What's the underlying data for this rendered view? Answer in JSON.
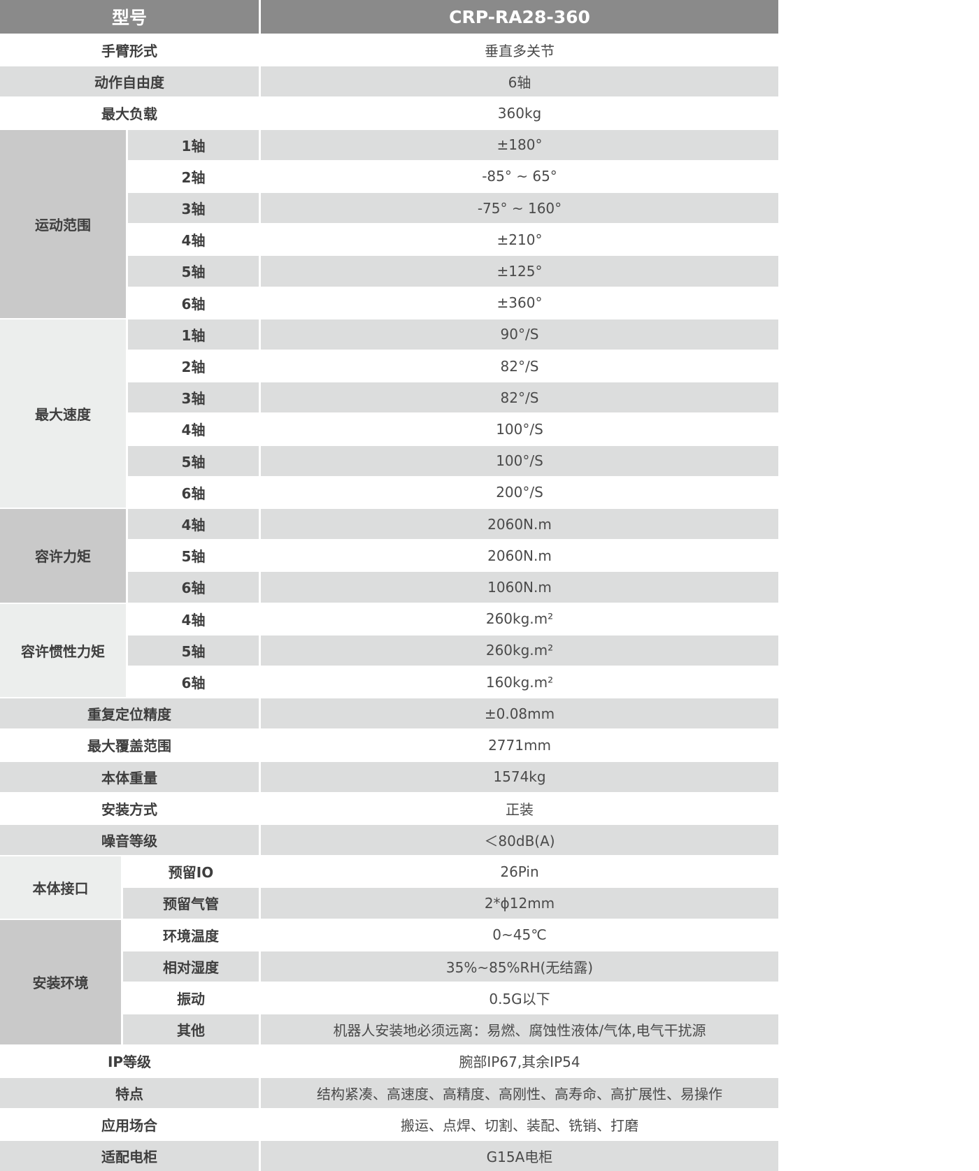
{
  "header": {
    "label": "型号",
    "value": "CRP-RA28-360"
  },
  "rows": [
    {
      "label": "手臂形式",
      "value": "垂直多关节"
    },
    {
      "label": "动作自由度",
      "value": "6轴"
    },
    {
      "label": "最大负载",
      "value": "360kg"
    },
    {
      "label": "运动范围",
      "tone": "dark",
      "sub": [
        {
          "label": "1轴",
          "value": "±180°"
        },
        {
          "label": "2轴",
          "value": "-85° ~ 65°"
        },
        {
          "label": "3轴",
          "value": "-75° ~ 160°"
        },
        {
          "label": "4轴",
          "value": "±210°"
        },
        {
          "label": "5轴",
          "value": "±125°"
        },
        {
          "label": "6轴",
          "value": "±360°"
        }
      ]
    },
    {
      "label": "最大速度",
      "tone": "light",
      "sub": [
        {
          "label": "1轴",
          "value": "90°/S"
        },
        {
          "label": "2轴",
          "value": "82°/S"
        },
        {
          "label": "3轴",
          "value": "82°/S"
        },
        {
          "label": "4轴",
          "value": "100°/S"
        },
        {
          "label": "5轴",
          "value": "100°/S"
        },
        {
          "label": "6轴",
          "value": "200°/S"
        }
      ]
    },
    {
      "label": "容许力矩",
      "tone": "dark",
      "sub": [
        {
          "label": "4轴",
          "value": "2060N.m"
        },
        {
          "label": "5轴",
          "value": "2060N.m"
        },
        {
          "label": "6轴",
          "value": "1060N.m"
        }
      ]
    },
    {
      "label": "容许惯性力矩",
      "tone": "light",
      "sub": [
        {
          "label": "4轴",
          "value": "260kg.m²"
        },
        {
          "label": "5轴",
          "value": "260kg.m²"
        },
        {
          "label": "6轴",
          "value": "160kg.m²"
        }
      ]
    },
    {
      "label": "重复定位精度",
      "value": "±0.08mm"
    },
    {
      "label": "最大覆盖范围",
      "value": "2771mm"
    },
    {
      "label": "本体重量",
      "value": "1574kg"
    },
    {
      "label": "安装方式",
      "value": "正装"
    },
    {
      "label": "噪音等级",
      "value": "＜80dB(A)"
    },
    {
      "label": "本体接口",
      "tone": "light",
      "narrow": true,
      "sub": [
        {
          "label": "预留IO",
          "value": "26Pin"
        },
        {
          "label": "预留气管",
          "value": "2*ϕ12mm"
        }
      ]
    },
    {
      "label": "安装环境",
      "tone": "dark",
      "narrow": true,
      "sub": [
        {
          "label": "环境温度",
          "value": "0~45℃"
        },
        {
          "label": "相对湿度",
          "value": "35%~85%RH(无结露)"
        },
        {
          "label": "振动",
          "value": "0.5G以下"
        },
        {
          "label": "其他",
          "value": "机器人安装地必须远离：易燃、腐蚀性液体/气体,电气干扰源"
        }
      ]
    },
    {
      "label": "IP等级",
      "value": "腕部IP67,其余IP54"
    },
    {
      "label": "特点",
      "value": "结构紧凑、高速度、高精度、高刚性、高寿命、高扩展性、易操作"
    },
    {
      "label": "应用场合",
      "value": "搬运、点焊、切割、装配、铣销、打磨"
    },
    {
      "label": "适配电柜",
      "value": "G15A电柜"
    }
  ]
}
